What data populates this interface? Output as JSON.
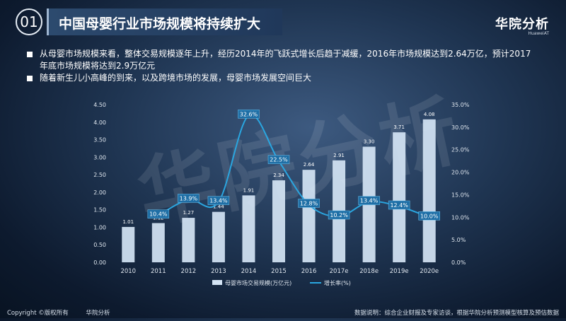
{
  "header": {
    "number": "01",
    "title": "中国母婴行业市场规模将持续扩大",
    "brand_main": "华院分析",
    "brand_sub": "HuaweiAT"
  },
  "bullets": [
    "从母婴市场规模来看，整体交易规模逐年上升，经历2014年的飞跃式增长后趋于减缓，2016年市场规模达到2.64万亿，预计2017年底市场规模将达到2.9万亿元",
    "随着新生儿小高峰的到来，以及跨境市场的发展，母婴市场发展空间巨大"
  ],
  "watermark": "华院分析",
  "footer": {
    "copyright": "Copyright ©版权所有",
    "company": "华院分析",
    "source": "数据说明：综合企业财报及专家访谈，根据华院分析预测模型核算及预估数据"
  },
  "colors": {
    "bar": "#d4e4f4",
    "line": "#2aa6e0",
    "label_box": "#1f6fa6",
    "axis_text": "#dfe6ee"
  },
  "chart_data": {
    "type": "bar",
    "categories": [
      "2010",
      "2011",
      "2012",
      "2013",
      "2014",
      "2015",
      "2016",
      "2017e",
      "2018e",
      "2019e",
      "2020e"
    ],
    "series": [
      {
        "name": "母婴市场交易规模(万亿元)",
        "type": "bar",
        "axis": "left",
        "values": [
          1.01,
          1.12,
          1.27,
          1.44,
          1.91,
          2.34,
          2.64,
          2.91,
          3.3,
          3.71,
          4.08
        ],
        "labels": [
          "1.01",
          "1.12",
          "1.27",
          "1.44",
          "1.91",
          "2.34",
          "2.64",
          "2.91",
          "3.30",
          "3.71",
          "4.08"
        ]
      },
      {
        "name": "增长率(%)",
        "type": "line",
        "axis": "right",
        "values": [
          null,
          10.4,
          13.9,
          13.4,
          32.6,
          22.5,
          12.8,
          10.2,
          13.4,
          12.4,
          10.0
        ],
        "labels": [
          null,
          "10.4%",
          "13.9%",
          "13.4%",
          "32.6%",
          "22.5%",
          "12.8%",
          "10.2%",
          "13.4%",
          "12.4%",
          "10.0%"
        ]
      }
    ],
    "y_left": {
      "min": 0,
      "max": 4.5,
      "ticks": [
        "0.00",
        "0.50",
        "1.00",
        "1.50",
        "2.00",
        "2.50",
        "3.00",
        "3.50",
        "4.00",
        "4.50"
      ]
    },
    "y_right": {
      "min": 0,
      "max": 35,
      "ticks": [
        "0.0%",
        "5.0%",
        "10.0%",
        "15.0%",
        "20.0%",
        "25.0%",
        "30.0%",
        "35.0%"
      ]
    },
    "grid": false,
    "legend_position": "bottom"
  }
}
